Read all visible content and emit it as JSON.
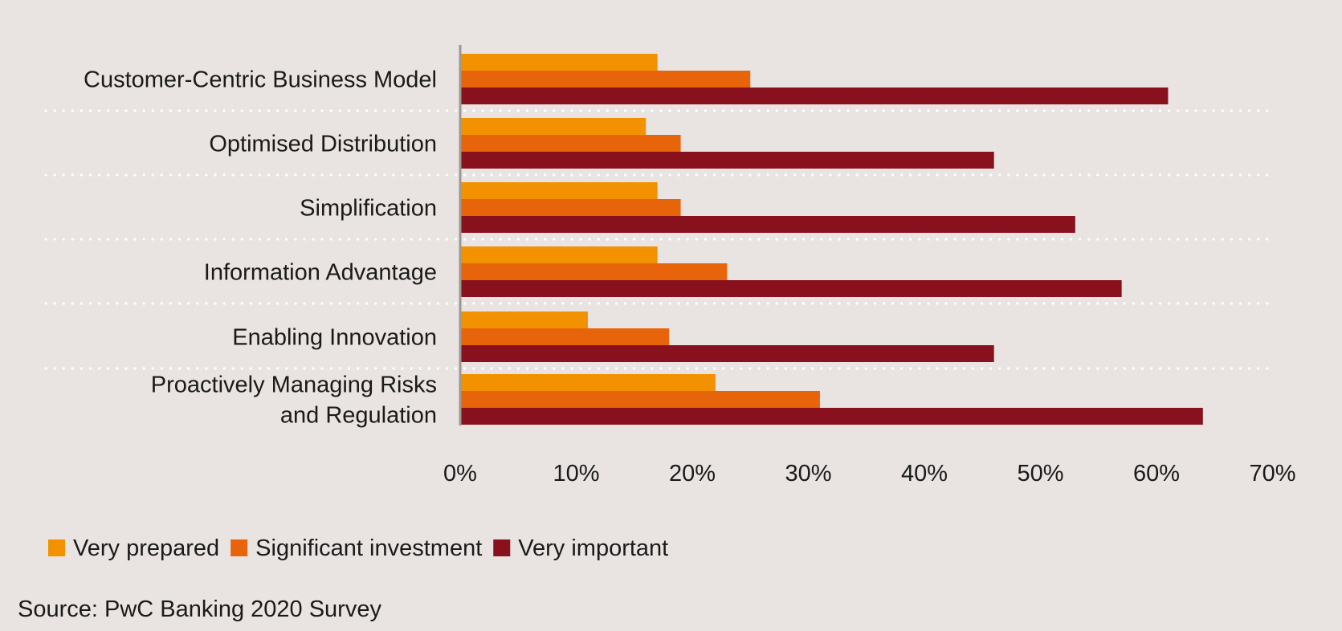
{
  "chart_data": {
    "type": "bar",
    "orientation": "horizontal",
    "categories": [
      [
        "Customer-Centric Business Model"
      ],
      [
        "Optimised Distribution"
      ],
      [
        "Simplification"
      ],
      [
        "Information Advantage"
      ],
      [
        "Enabling Innovation"
      ],
      [
        "Proactively Managing Risks",
        "and Regulation"
      ]
    ],
    "series": [
      {
        "name": "Very prepared",
        "color": "#f39200",
        "values": [
          17,
          16,
          17,
          17,
          11,
          22
        ]
      },
      {
        "name": "Significant investment",
        "color": "#e8640b",
        "values": [
          25,
          19,
          19,
          23,
          18,
          31
        ]
      },
      {
        "name": "Very important",
        "color": "#89111e",
        "values": [
          61,
          46,
          53,
          57,
          46,
          64
        ]
      }
    ],
    "xlim": [
      0,
      70
    ],
    "xticks": [
      "0%",
      "10%",
      "20%",
      "30%",
      "40%",
      "50%",
      "60%",
      "70%"
    ],
    "xtick_values": [
      0,
      10,
      20,
      30,
      40,
      50,
      60,
      70
    ],
    "legend_position": "bottom-left",
    "grid": "dotted separators between categories",
    "source": "Source: PwC Banking 2020 Survey"
  }
}
